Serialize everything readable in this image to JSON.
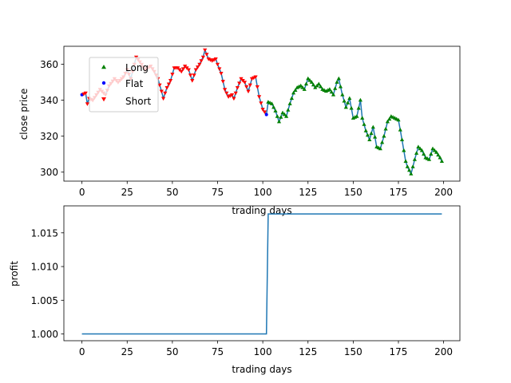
{
  "colors": {
    "line": "#1f77b4",
    "long": "#008000",
    "flat": "#0000ff",
    "short": "#ff0000"
  },
  "chart_data": [
    {
      "type": "line",
      "xlabel": "trading days",
      "ylabel": "close price",
      "xlim": [
        -10,
        209
      ],
      "ylim": [
        295,
        370
      ],
      "xticks": [
        0,
        25,
        50,
        75,
        100,
        125,
        150,
        175,
        200
      ],
      "yticks": [
        300,
        320,
        340,
        360
      ],
      "legend": {
        "placement": "upper-left",
        "entries": [
          "Long",
          "Flat",
          "Short"
        ]
      },
      "flat_days": [
        0,
        102
      ],
      "long_start": 103,
      "price_anchors": [
        [
          0,
          343
        ],
        [
          2,
          344
        ],
        [
          3,
          338
        ],
        [
          4,
          341
        ],
        [
          6,
          340
        ],
        [
          8,
          343
        ],
        [
          10,
          346
        ],
        [
          13,
          343
        ],
        [
          15,
          348
        ],
        [
          18,
          352
        ],
        [
          20,
          350
        ],
        [
          23,
          353
        ],
        [
          25,
          357
        ],
        [
          27,
          352
        ],
        [
          30,
          364
        ],
        [
          33,
          360
        ],
        [
          35,
          357
        ],
        [
          38,
          359
        ],
        [
          40,
          356
        ],
        [
          42,
          352
        ],
        [
          44,
          345
        ],
        [
          45,
          341
        ],
        [
          47,
          347
        ],
        [
          49,
          351
        ],
        [
          51,
          358
        ],
        [
          53,
          358
        ],
        [
          55,
          356
        ],
        [
          57,
          359
        ],
        [
          59,
          357
        ],
        [
          61,
          351
        ],
        [
          63,
          357
        ],
        [
          65,
          360
        ],
        [
          67,
          364
        ],
        [
          68,
          368
        ],
        [
          70,
          363
        ],
        [
          72,
          362
        ],
        [
          74,
          363
        ],
        [
          75,
          360
        ],
        [
          77,
          355
        ],
        [
          79,
          346
        ],
        [
          81,
          342
        ],
        [
          83,
          343
        ],
        [
          84,
          341
        ],
        [
          86,
          347
        ],
        [
          88,
          352
        ],
        [
          90,
          350
        ],
        [
          92,
          345
        ],
        [
          94,
          352
        ],
        [
          96,
          353
        ],
        [
          98,
          342
        ],
        [
          100,
          335
        ],
        [
          102,
          332
        ],
        [
          103,
          339
        ],
        [
          105,
          338
        ],
        [
          107,
          334
        ],
        [
          109,
          328
        ],
        [
          111,
          333
        ],
        [
          113,
          331
        ],
        [
          115,
          338
        ],
        [
          117,
          344
        ],
        [
          119,
          347
        ],
        [
          121,
          348
        ],
        [
          123,
          346
        ],
        [
          125,
          352
        ],
        [
          127,
          350
        ],
        [
          129,
          347
        ],
        [
          131,
          349
        ],
        [
          133,
          346
        ],
        [
          135,
          345
        ],
        [
          137,
          346
        ],
        [
          139,
          343
        ],
        [
          141,
          350
        ],
        [
          142,
          352
        ],
        [
          144,
          343
        ],
        [
          146,
          336
        ],
        [
          148,
          341
        ],
        [
          150,
          330
        ],
        [
          152,
          331
        ],
        [
          154,
          340
        ],
        [
          155,
          330
        ],
        [
          157,
          323
        ],
        [
          159,
          318
        ],
        [
          161,
          325
        ],
        [
          163,
          314
        ],
        [
          165,
          313
        ],
        [
          167,
          320
        ],
        [
          169,
          328
        ],
        [
          171,
          331
        ],
        [
          173,
          330
        ],
        [
          175,
          329
        ],
        [
          177,
          318
        ],
        [
          179,
          306
        ],
        [
          180,
          303
        ],
        [
          182,
          299
        ],
        [
          184,
          307
        ],
        [
          186,
          314
        ],
        [
          188,
          312
        ],
        [
          190,
          308
        ],
        [
          192,
          307
        ],
        [
          194,
          313
        ],
        [
          196,
          311
        ],
        [
          198,
          308
        ],
        [
          199,
          306
        ]
      ]
    },
    {
      "type": "line",
      "xlabel": "trading days",
      "ylabel": "profit",
      "xlim": [
        -10,
        209
      ],
      "ylim": [
        0.999,
        1.019
      ],
      "xticks": [
        0,
        25,
        50,
        75,
        100,
        125,
        150,
        175,
        200
      ],
      "yticks": [
        1.0,
        1.005,
        1.01,
        1.015
      ],
      "ytick_labels": [
        "1.000",
        "1.005",
        "1.010",
        "1.015"
      ],
      "x": [
        0,
        102,
        103,
        199
      ],
      "y": [
        1.0,
        1.0,
        1.0178,
        1.0178
      ]
    }
  ]
}
